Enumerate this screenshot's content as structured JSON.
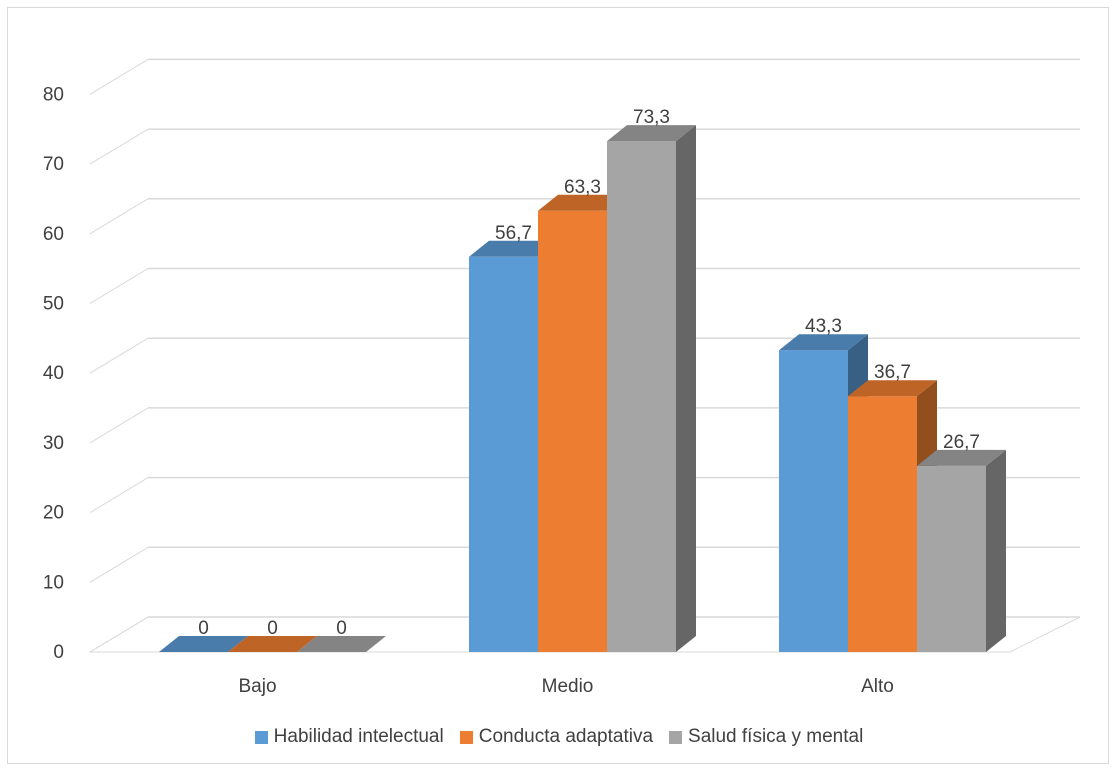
{
  "chart_data": {
    "type": "bar",
    "title": "",
    "xlabel": "",
    "ylabel": "",
    "ylim": [
      0,
      80
    ],
    "yticks": [
      0,
      10,
      20,
      30,
      40,
      50,
      60,
      70,
      80
    ],
    "grid": true,
    "legend_position": "bottom",
    "categories": [
      "Bajo",
      "Medio",
      "Alto"
    ],
    "series": [
      {
        "name": "Habilidad intelectual",
        "color": "#5b9bd5",
        "values": [
          0,
          56.7,
          43.3
        ],
        "labels": [
          "0",
          "56,7",
          "43,3"
        ]
      },
      {
        "name": "Conducta adaptativa",
        "color": "#ed7d31",
        "values": [
          0,
          63.3,
          36.7
        ],
        "labels": [
          "0",
          "63,3",
          "36,7"
        ]
      },
      {
        "name": "Salud física y mental",
        "color": "#a5a5a5",
        "values": [
          0,
          73.3,
          26.7
        ],
        "labels": [
          "0",
          "73,3",
          "26,7"
        ]
      }
    ]
  }
}
